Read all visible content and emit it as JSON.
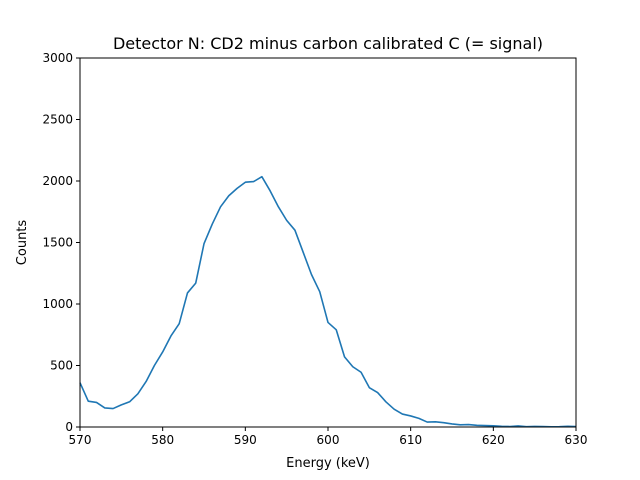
{
  "chart_data": {
    "type": "line",
    "title": "Detector N: CD2 minus carbon calibrated C (= signal)",
    "xlabel": "Energy (keV)",
    "ylabel": "Counts",
    "xlim": [
      570,
      630
    ],
    "ylim": [
      0,
      3000
    ],
    "xticks": [
      570,
      580,
      590,
      600,
      610,
      620,
      630
    ],
    "yticks": [
      0,
      500,
      1000,
      1500,
      2000,
      2500,
      3000
    ],
    "grid": false,
    "legend": "none",
    "series": [
      {
        "color": "#1f77b4",
        "x": [
          570,
          571,
          572,
          573,
          574,
          575,
          576,
          577,
          578,
          579,
          580,
          581,
          582,
          583,
          584,
          585,
          586,
          587,
          588,
          589,
          590,
          591,
          592,
          593,
          594,
          595,
          596,
          597,
          598,
          599,
          600,
          601,
          602,
          603,
          604,
          605,
          606,
          607,
          608,
          609,
          610,
          611,
          612,
          613,
          614,
          615,
          616,
          617,
          618,
          619,
          620,
          621,
          622,
          623,
          624,
          625,
          626,
          627,
          628,
          629,
          630
        ],
        "y": [
          360,
          210,
          200,
          155,
          150,
          180,
          205,
          270,
          370,
          500,
          610,
          740,
          840,
          1090,
          1170,
          1490,
          1650,
          1790,
          1880,
          1940,
          1990,
          1995,
          2035,
          1920,
          1790,
          1680,
          1600,
          1420,
          1240,
          1100,
          850,
          790,
          570,
          490,
          445,
          320,
          280,
          205,
          145,
          105,
          90,
          70,
          40,
          42,
          35,
          25,
          18,
          20,
          14,
          12,
          10,
          6,
          4,
          9,
          3,
          5,
          4,
          2,
          3,
          6,
          4
        ]
      }
    ]
  }
}
